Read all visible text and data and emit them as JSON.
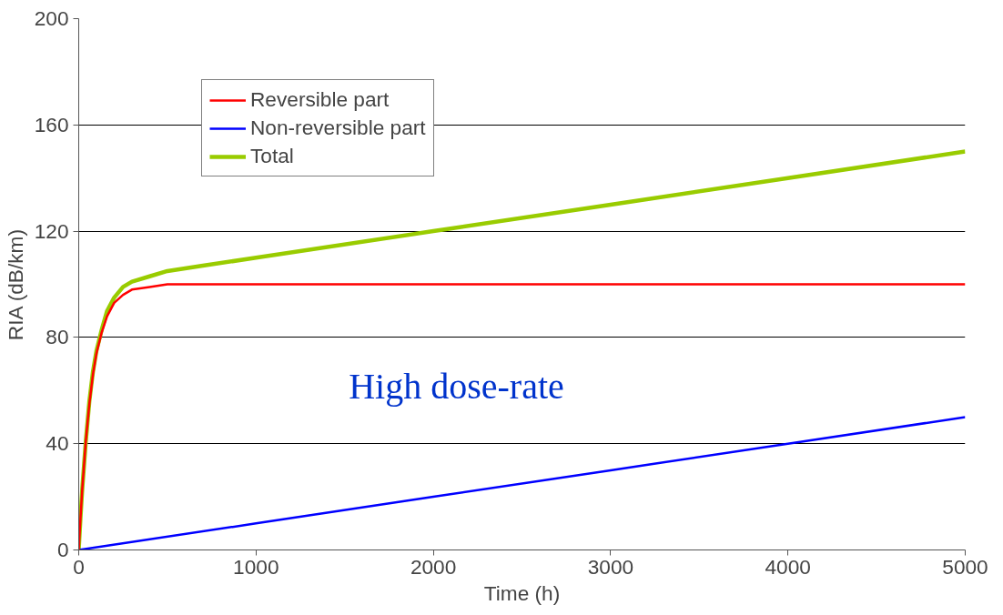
{
  "chart_data": {
    "type": "line",
    "xlabel": "Time (h)",
    "ylabel": "RIA (dB/km)",
    "x": [
      0,
      10,
      20,
      40,
      60,
      80,
      100,
      130,
      160,
      200,
      250,
      300,
      400,
      500,
      700,
      1000,
      2000,
      3000,
      4000,
      5000
    ],
    "series": [
      {
        "name": "Reversible part",
        "color": "#ff0000",
        "values": [
          0,
          12,
          23,
          41,
          55,
          66,
          74,
          82,
          88,
          93,
          96,
          98,
          99,
          100,
          100,
          100,
          100,
          100,
          100,
          100
        ]
      },
      {
        "name": "Non-reversible part",
        "color": "#0000ff",
        "x": [
          0,
          1000,
          2000,
          3000,
          4000,
          5000
        ],
        "values": [
          0,
          10,
          20,
          30,
          40,
          50
        ]
      },
      {
        "name": "Total",
        "color": "#99cc00",
        "values": [
          0,
          12,
          23,
          41,
          56,
          67,
          75,
          83,
          90,
          95,
          99,
          101,
          103,
          105,
          107,
          110,
          120,
          130,
          140,
          150
        ]
      }
    ],
    "xlim": [
      0,
      5000
    ],
    "ylim": [
      0,
      200
    ],
    "xticks": [
      0,
      1000,
      2000,
      3000,
      4000,
      5000
    ],
    "yticks": [
      0,
      40,
      80,
      120,
      160,
      200
    ],
    "grid": "y",
    "legend": "top left",
    "marker": "none",
    "line_style": "solid",
    "annotations": [
      "High dose-rate"
    ]
  }
}
